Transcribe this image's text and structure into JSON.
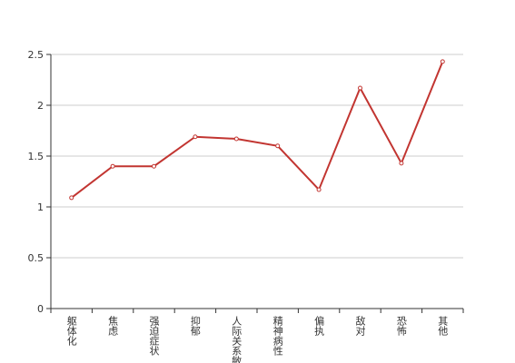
{
  "chart_data": {
    "type": "line",
    "categories": [
      "躯体化",
      "焦虑",
      "强迫症状",
      "抑郁",
      "人际关系敏感",
      "精神病性",
      "偏执",
      "敌对",
      "恐怖",
      "其他"
    ],
    "values": [
      1.09,
      1.4,
      1.4,
      1.69,
      1.67,
      1.6,
      1.17,
      2.17,
      1.43,
      2.43
    ],
    "color": "#c23531",
    "ylim": [
      0,
      2.5
    ],
    "yticks": [
      0,
      0.5,
      1,
      1.5,
      2,
      2.5
    ],
    "grid": true
  }
}
